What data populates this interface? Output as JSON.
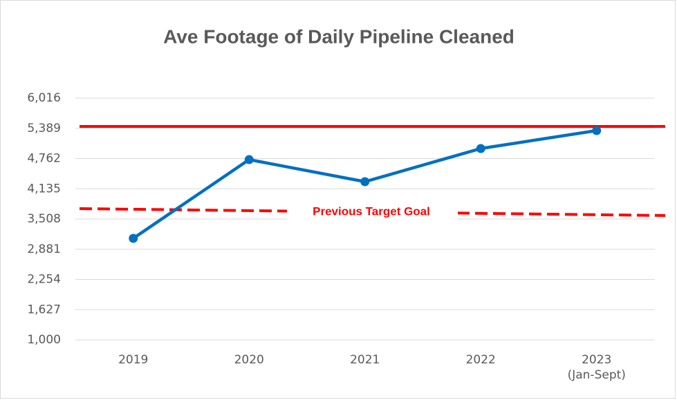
{
  "chart_data": {
    "type": "line",
    "title": "Ave Footage of Daily Pipeline Cleaned",
    "categories": [
      "2019",
      "2020",
      "2021",
      "2022",
      "2023\n(Jan-Sept)"
    ],
    "series": [
      {
        "name": "Ave Footage",
        "color": "#0070c0",
        "values": [
          3107,
          4740,
          4282,
          4970,
          5342
        ]
      }
    ],
    "ylim": [
      1000,
      6016
    ],
    "yticks": [
      {
        "value": 1000,
        "label": "1,000"
      },
      {
        "value": 1627,
        "label": "1,627"
      },
      {
        "value": 2254,
        "label": "2,254"
      },
      {
        "value": 2881,
        "label": "2,881"
      },
      {
        "value": 3508,
        "label": "3,508"
      },
      {
        "value": 4135,
        "label": "4,135"
      },
      {
        "value": 4762,
        "label": "4,762"
      },
      {
        "value": 5389,
        "label": "5,389"
      },
      {
        "value": 6016,
        "label": "6,016"
      }
    ],
    "grid": true,
    "reference_lines": [
      {
        "color": "#ff0000",
        "style": "solid",
        "values": [
          5428,
          5428
        ]
      },
      {
        "label": "Previous Target Goal",
        "color": "#ff0000",
        "style": "dashed",
        "values": [
          3723,
          3580
        ]
      }
    ]
  }
}
